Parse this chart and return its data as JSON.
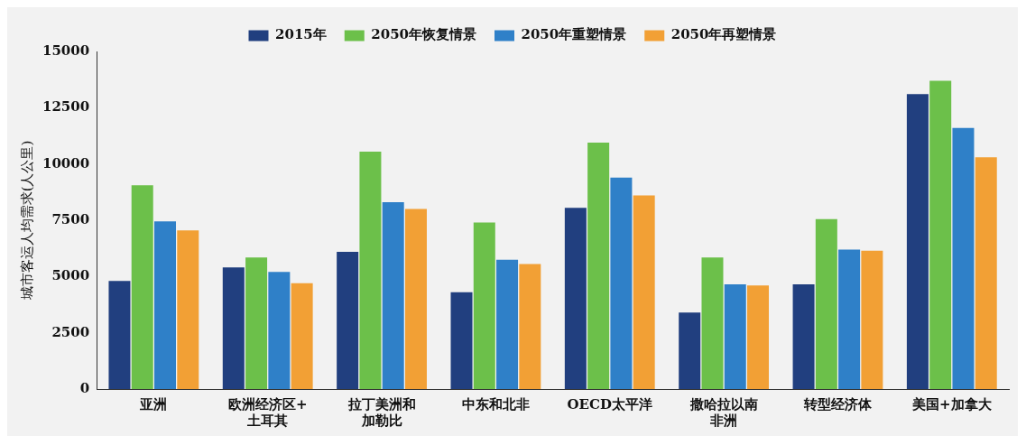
{
  "chart_data": {
    "type": "bar",
    "ylabel": "城市客运人均需求(人公里)",
    "categories": [
      "亚洲",
      "欧洲经济区+土耳其",
      "拉丁美洲和加勒比",
      "中东和北非",
      "OECD太平洋",
      "撒哈拉以南非洲",
      "转型经济体",
      "美国+加拿大"
    ],
    "series": [
      {
        "name": "2015年",
        "color": "#213f7f",
        "values": [
          4800,
          5400,
          6100,
          4300,
          8050,
          3400,
          4650,
          13100
        ]
      },
      {
        "name": "2050年恢复情景",
        "color": "#6cc04a",
        "values": [
          9050,
          5850,
          10550,
          7400,
          10950,
          5850,
          7550,
          13700
        ]
      },
      {
        "name": "2050年重塑情景",
        "color": "#2f80c8",
        "values": [
          7450,
          5200,
          8300,
          5750,
          9400,
          4650,
          6200,
          11600
        ]
      },
      {
        "name": "2050年再塑情景",
        "color": "#f2a035",
        "values": [
          7050,
          4700,
          8000,
          5550,
          8600,
          4600,
          6150,
          10300
        ]
      }
    ],
    "ylim": [
      0,
      15000
    ],
    "yticks": [
      0,
      2500,
      5000,
      7500,
      10000,
      12500,
      15000
    ],
    "grid": false,
    "legend": "top"
  }
}
